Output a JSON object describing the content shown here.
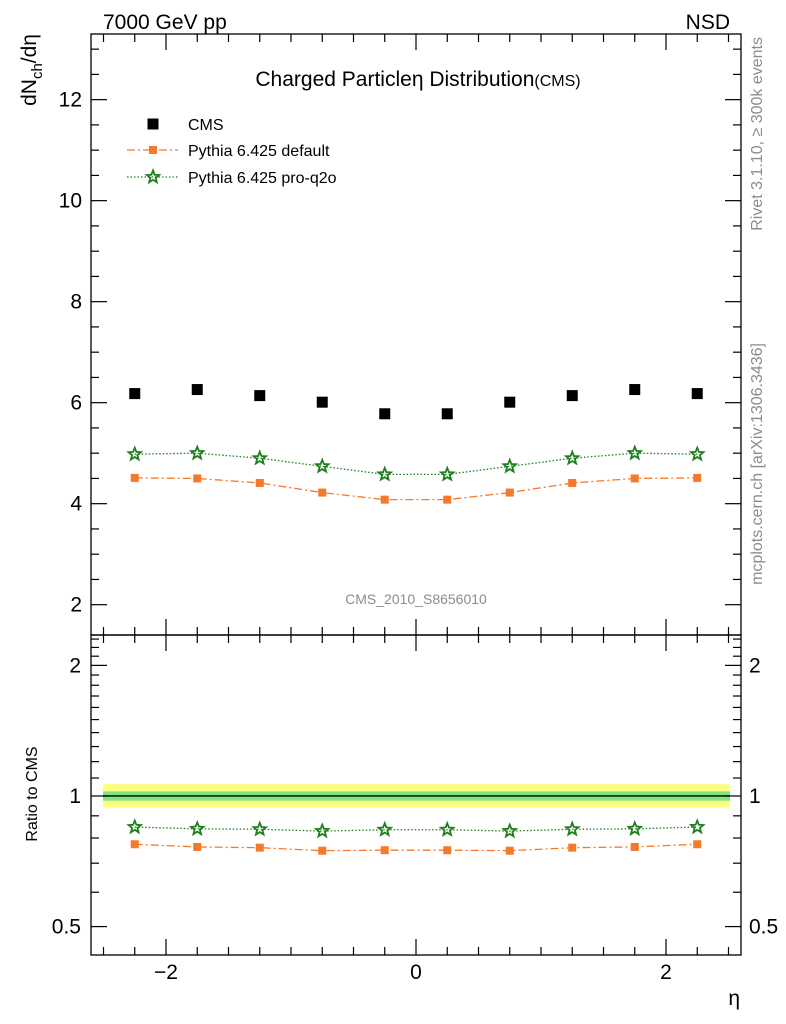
{
  "header": {
    "left": "7000 GeV pp",
    "right": "NSD"
  },
  "side": {
    "rivet": "Rivet 3.1.10, ≥ 300k events",
    "mcplots": "mcplots.cern.ch [arXiv:1306.3436]"
  },
  "chart_data": [
    {
      "type": "scatter",
      "title": "Charged Particle",
      "title_symbol": "η",
      "title_rest": "Distribution",
      "title_suffix": "(CMS)",
      "ylabel_main": "dN",
      "ylabel_sub": "ch",
      "ylabel_rest": "/dη",
      "xlabel": "η",
      "analysis_label": "CMS_2010_S8656010",
      "xlim": [
        -2.6,
        2.6
      ],
      "ylim": [
        1.4,
        13.3
      ],
      "yticks": [
        2,
        4,
        6,
        8,
        10,
        12
      ],
      "grid": false,
      "legend_position": "top-left",
      "x": [
        -2.25,
        -1.75,
        -1.25,
        -0.75,
        -0.25,
        0.25,
        0.75,
        1.25,
        1.75,
        2.25
      ],
      "series": [
        {
          "name": "CMS",
          "color": "#000000",
          "marker": "square",
          "line": "none",
          "values": [
            6.18,
            6.26,
            6.14,
            6.01,
            5.78,
            5.78,
            6.01,
            6.14,
            6.26,
            6.18
          ]
        },
        {
          "name": "Pythia 6.425 default",
          "color": "#f5792a",
          "marker": "square",
          "line": "dashdot",
          "values": [
            4.51,
            4.5,
            4.41,
            4.22,
            4.08,
            4.08,
            4.22,
            4.41,
            4.5,
            4.51
          ]
        },
        {
          "name": "Pythia 6.425 pro-q2o",
          "color": "#1e7f1e",
          "marker": "star",
          "line": "dotted",
          "values": [
            4.98,
            5.0,
            4.9,
            4.74,
            4.58,
            4.58,
            4.74,
            4.9,
            5.0,
            4.98
          ]
        }
      ]
    },
    {
      "type": "line",
      "ylabel": "Ratio to CMS",
      "xlabel": "η",
      "log_y": true,
      "xlim": [
        -2.6,
        2.6
      ],
      "ylim": [
        0.43,
        2.35
      ],
      "yticks": [
        0.5,
        1,
        2
      ],
      "ytick_labels": [
        "0.5",
        "1",
        "2"
      ],
      "xticks": [
        -2,
        0,
        2
      ],
      "xtick_labels": [
        "−2",
        "0",
        "2"
      ],
      "reference": 1,
      "band_inner": [
        0.975,
        1.025
      ],
      "band_outer": [
        0.94,
        1.065
      ],
      "band_inner_color": "#80e580",
      "band_outer_color": "#ffff80",
      "x": [
        -2.25,
        -1.75,
        -1.25,
        -0.75,
        -0.25,
        0.25,
        0.75,
        1.25,
        1.75,
        2.25
      ],
      "series": [
        {
          "name": "Pythia 6.425 default",
          "color": "#f5792a",
          "marker": "square",
          "line": "dashdot",
          "values": [
            0.774,
            0.763,
            0.76,
            0.748,
            0.75,
            0.75,
            0.748,
            0.76,
            0.763,
            0.774
          ]
        },
        {
          "name": "Pythia 6.425 pro-q2o",
          "color": "#1e7f1e",
          "marker": "star",
          "line": "dotted",
          "values": [
            0.848,
            0.84,
            0.838,
            0.83,
            0.836,
            0.836,
            0.83,
            0.838,
            0.84,
            0.848
          ]
        }
      ]
    }
  ]
}
